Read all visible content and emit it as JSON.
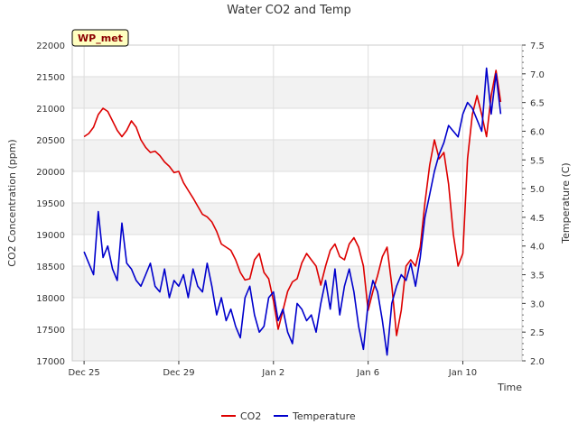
{
  "chart_data": {
    "type": "line",
    "title": "Water CO2 and Temp",
    "xlabel": "Time",
    "ylabel": "CO2 Concentration (ppm)",
    "y2label": "Temperature (C)",
    "badge": "WP_met",
    "x_ticks": [
      "Dec 25",
      "Dec 29",
      "Jan 2",
      "Jan 6",
      "Jan 10"
    ],
    "x_tick_days": [
      0,
      4,
      8,
      12,
      16
    ],
    "xlim_days": [
      -0.5,
      18.5
    ],
    "ylim": [
      17000,
      22000
    ],
    "y_ticks": [
      17000,
      17500,
      18000,
      18500,
      19000,
      19500,
      20000,
      20500,
      21000,
      21500,
      22000
    ],
    "y2lim": [
      2.0,
      7.5
    ],
    "y2_ticks": [
      "2.0",
      "2.5",
      "3.0",
      "3.5",
      "4.0",
      "4.5",
      "5.0",
      "5.5",
      "6.0",
      "6.5",
      "7.0",
      "7.5"
    ],
    "grid": true,
    "legend_position": "bottom-center",
    "series": [
      {
        "name": "CO2",
        "axis": "left",
        "color": "#dd0000",
        "x_days": [
          0.0,
          0.2,
          0.4,
          0.6,
          0.8,
          1.0,
          1.2,
          1.4,
          1.6,
          1.8,
          2.0,
          2.2,
          2.4,
          2.6,
          2.8,
          3.0,
          3.2,
          3.4,
          3.6,
          3.8,
          4.0,
          4.2,
          4.4,
          4.6,
          4.8,
          5.0,
          5.2,
          5.4,
          5.6,
          5.8,
          6.0,
          6.2,
          6.4,
          6.6,
          6.8,
          7.0,
          7.2,
          7.4,
          7.6,
          7.8,
          8.0,
          8.2,
          8.4,
          8.6,
          8.8,
          9.0,
          9.2,
          9.4,
          9.6,
          9.8,
          10.0,
          10.2,
          10.4,
          10.6,
          10.8,
          11.0,
          11.2,
          11.4,
          11.6,
          11.8,
          12.0,
          12.2,
          12.4,
          12.6,
          12.8,
          13.0,
          13.2,
          13.4,
          13.6,
          13.8,
          14.0,
          14.2,
          14.4,
          14.6,
          14.8,
          15.0,
          15.2,
          15.4,
          15.6,
          15.8,
          16.0,
          16.2,
          16.4,
          16.6,
          16.8,
          17.0,
          17.2,
          17.4,
          17.6
        ],
        "values": [
          20550,
          20600,
          20700,
          20900,
          21000,
          20950,
          20800,
          20650,
          20550,
          20650,
          20800,
          20700,
          20500,
          20380,
          20300,
          20320,
          20250,
          20150,
          20080,
          19980,
          20000,
          19820,
          19700,
          19580,
          19450,
          19320,
          19280,
          19200,
          19050,
          18850,
          18800,
          18750,
          18600,
          18400,
          18280,
          18300,
          18600,
          18700,
          18400,
          18300,
          17950,
          17500,
          17800,
          18100,
          18250,
          18300,
          18550,
          18700,
          18600,
          18500,
          18200,
          18500,
          18750,
          18850,
          18650,
          18600,
          18850,
          18950,
          18800,
          18500,
          17800,
          18100,
          18350,
          18650,
          18800,
          18200,
          17400,
          17800,
          18500,
          18600,
          18500,
          18800,
          19500,
          20100,
          20500,
          20200,
          20300,
          19800,
          19000,
          18500,
          18700,
          20200,
          20900,
          21200,
          20900,
          20550,
          21200,
          21600,
          21100
        ]
      },
      {
        "name": "Temperature",
        "axis": "right",
        "color": "#0000cc",
        "x_days": [
          0.0,
          0.2,
          0.4,
          0.6,
          0.8,
          1.0,
          1.2,
          1.4,
          1.6,
          1.8,
          2.0,
          2.2,
          2.4,
          2.6,
          2.8,
          3.0,
          3.2,
          3.4,
          3.6,
          3.8,
          4.0,
          4.2,
          4.4,
          4.6,
          4.8,
          5.0,
          5.2,
          5.4,
          5.6,
          5.8,
          6.0,
          6.2,
          6.4,
          6.6,
          6.8,
          7.0,
          7.2,
          7.4,
          7.6,
          7.8,
          8.0,
          8.2,
          8.4,
          8.6,
          8.8,
          9.0,
          9.2,
          9.4,
          9.6,
          9.8,
          10.0,
          10.2,
          10.4,
          10.6,
          10.8,
          11.0,
          11.2,
          11.4,
          11.6,
          11.8,
          12.0,
          12.2,
          12.4,
          12.6,
          12.8,
          13.0,
          13.2,
          13.4,
          13.6,
          13.8,
          14.0,
          14.2,
          14.4,
          14.6,
          14.8,
          15.0,
          15.2,
          15.4,
          15.6,
          15.8,
          16.0,
          16.2,
          16.4,
          16.6,
          16.8,
          17.0,
          17.2,
          17.4,
          17.6
        ],
        "values": [
          3.9,
          3.7,
          3.5,
          4.6,
          3.8,
          4.0,
          3.6,
          3.4,
          4.4,
          3.7,
          3.6,
          3.4,
          3.3,
          3.5,
          3.7,
          3.3,
          3.2,
          3.6,
          3.1,
          3.4,
          3.3,
          3.5,
          3.1,
          3.6,
          3.3,
          3.2,
          3.7,
          3.3,
          2.8,
          3.1,
          2.7,
          2.9,
          2.6,
          2.4,
          3.1,
          3.3,
          2.8,
          2.5,
          2.6,
          3.1,
          3.2,
          2.7,
          2.9,
          2.5,
          2.3,
          3.0,
          2.9,
          2.7,
          2.8,
          2.5,
          3.0,
          3.4,
          2.9,
          3.6,
          2.8,
          3.3,
          3.6,
          3.2,
          2.6,
          2.2,
          3.0,
          3.4,
          3.2,
          2.7,
          2.1,
          3.0,
          3.3,
          3.5,
          3.4,
          3.7,
          3.3,
          3.8,
          4.5,
          4.9,
          5.3,
          5.6,
          5.8,
          6.1,
          6.0,
          5.9,
          6.3,
          6.5,
          6.4,
          6.2,
          6.0,
          7.1,
          6.3,
          7.0,
          6.3
        ]
      }
    ]
  }
}
